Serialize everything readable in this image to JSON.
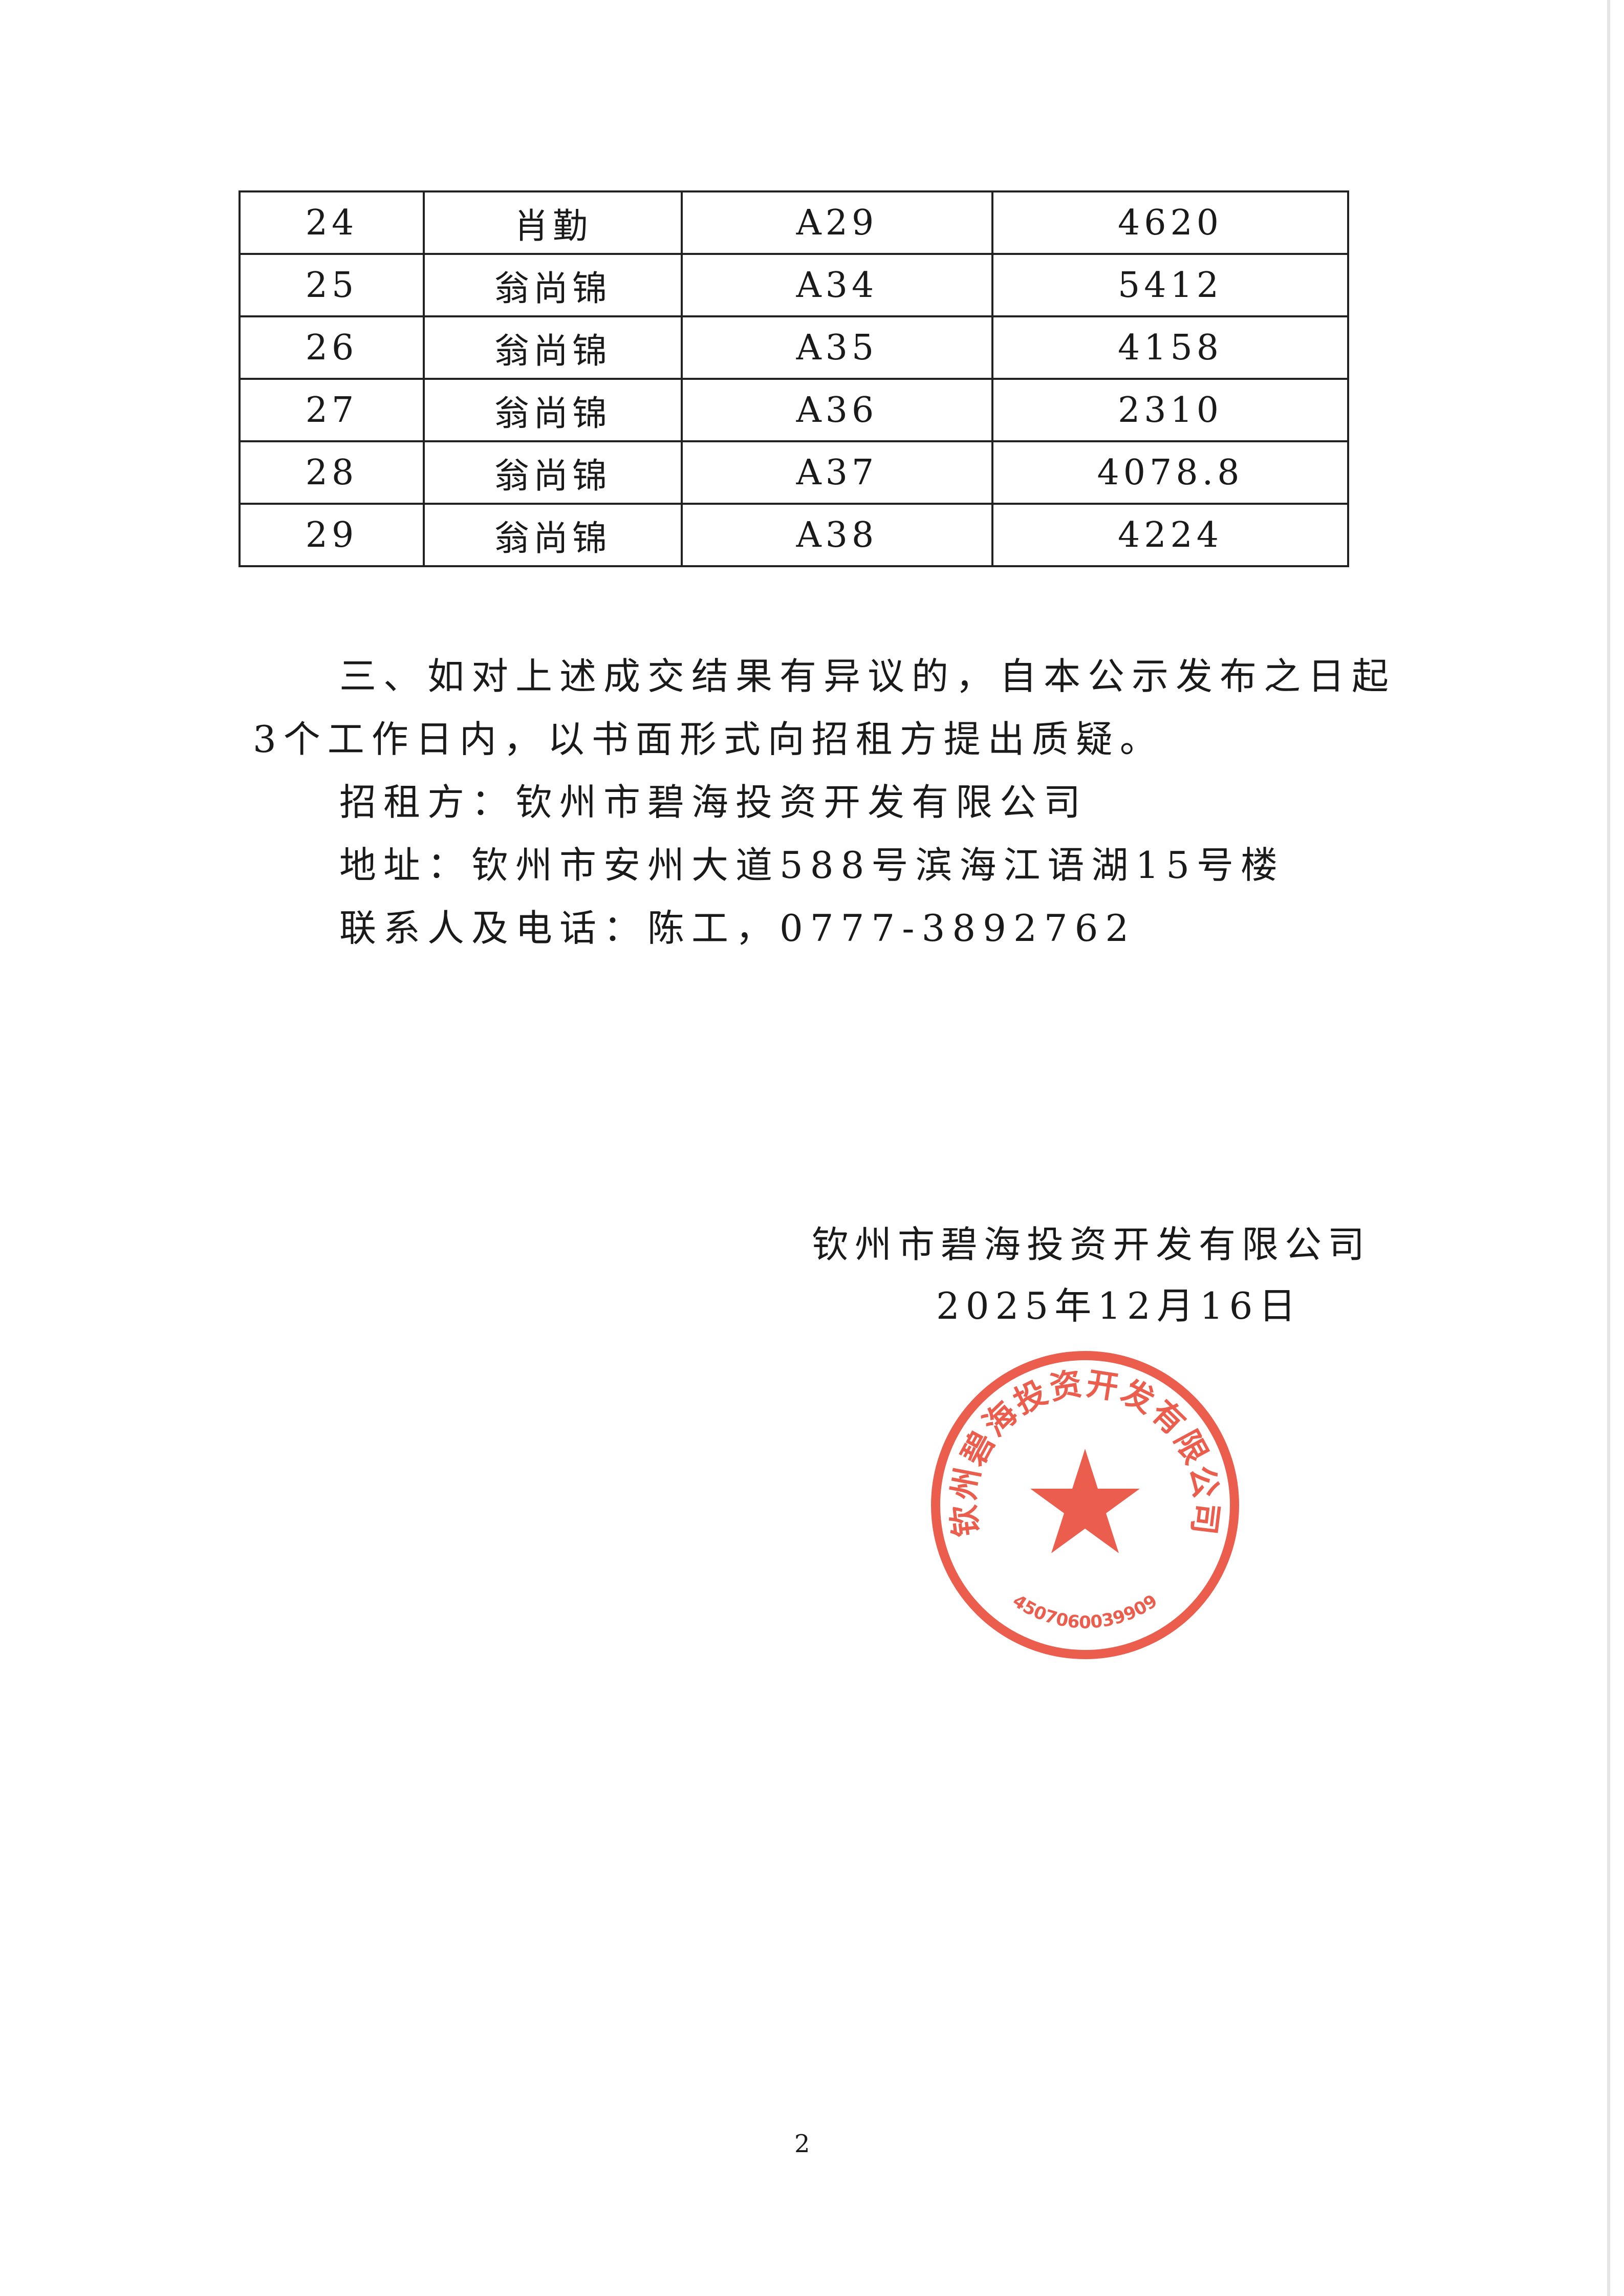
{
  "table": {
    "rows": [
      [
        "24",
        "肖勤",
        "A29",
        "4620"
      ],
      [
        "25",
        "翁尚锦",
        "A34",
        "5412"
      ],
      [
        "26",
        "翁尚锦",
        "A35",
        "4158"
      ],
      [
        "27",
        "翁尚锦",
        "A36",
        "2310"
      ],
      [
        "28",
        "翁尚锦",
        "A37",
        "4078.8"
      ],
      [
        "29",
        "翁尚锦",
        "A38",
        "4224"
      ]
    ]
  },
  "body": {
    "para_line1": "三、如对上述成交结果有异议的，自本公示发布之日起",
    "para_line2": "3个工作日内，以书面形式向招租方提出质疑。",
    "lessor": "招租方：钦州市碧海投资开发有限公司",
    "address": "地址：钦州市安州大道588号滨海江语湖15号楼",
    "contact": "联系人及电话：陈工，0777-3892762"
  },
  "signature": {
    "company": "钦州市碧海投资开发有限公司",
    "date": "2025年12月16日"
  },
  "stamp": {
    "arc_text": "钦州碧海投资开发有限公司",
    "code": "4507060039909",
    "color": "#e8412f"
  },
  "page_number": "2"
}
